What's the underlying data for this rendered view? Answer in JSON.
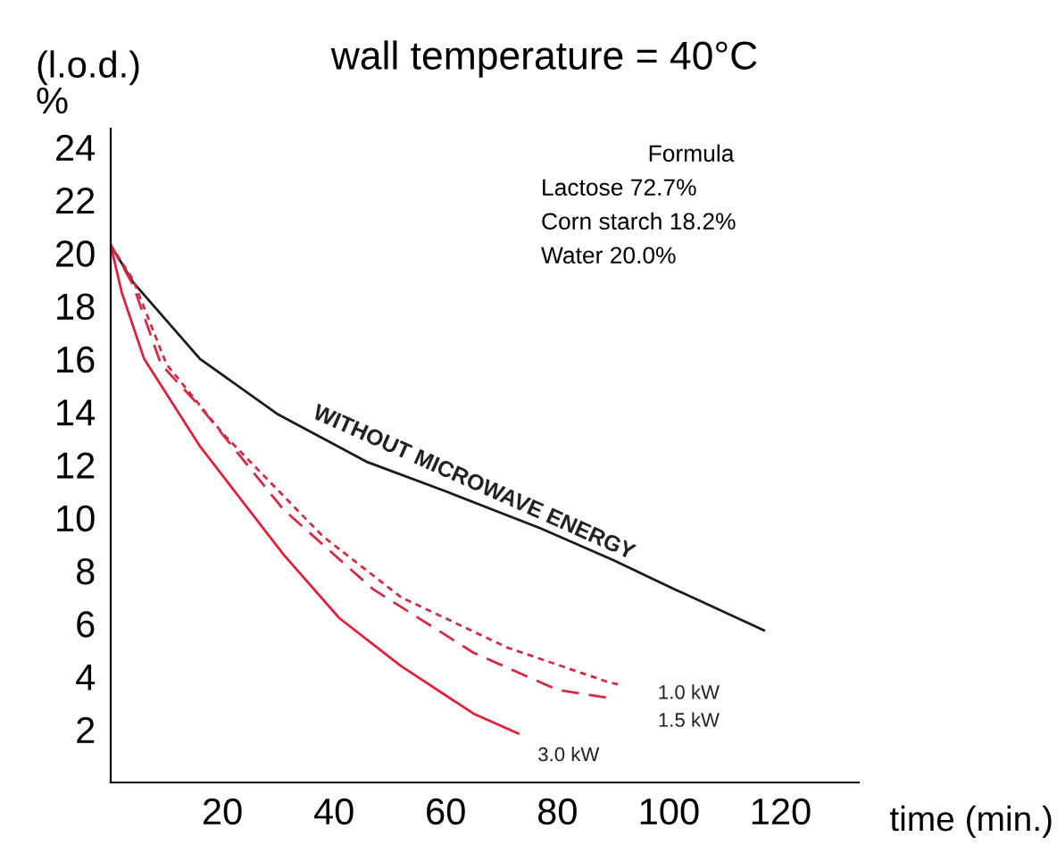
{
  "chart_data": {
    "type": "line",
    "title": "wall temperature = 40°C",
    "ylabel": "(l.o.d.)\n%",
    "xlabel": "time (min.)",
    "xlim": [
      0,
      134
    ],
    "ylim": [
      0,
      24.7
    ],
    "xticks": [
      20,
      40,
      60,
      80,
      100,
      120
    ],
    "yticks": [
      2,
      4,
      6,
      8,
      10,
      12,
      14,
      16,
      18,
      20,
      22,
      24
    ],
    "grid": false,
    "legend": false,
    "marker": "none",
    "series": [
      {
        "name": "WITHOUT MICROWAVE ENERGY",
        "color": "#1a1a1a",
        "line_style": "solid",
        "x": [
          0,
          4,
          16,
          30,
          46,
          60,
          77,
          90,
          101,
          117
        ],
        "values": [
          20.3,
          18.9,
          16.0,
          13.9,
          12.1,
          11.0,
          9.6,
          8.4,
          7.3,
          5.75
        ]
      },
      {
        "name": "1.0 kW",
        "color": "#d42a45",
        "line_style": "dotted",
        "x": [
          0,
          4,
          10,
          20,
          38,
          52,
          71,
          89,
          91
        ],
        "values": [
          20.3,
          19.0,
          15.8,
          13.2,
          9.3,
          7.0,
          5.1,
          3.8,
          3.7
        ]
      },
      {
        "name": "1.5 kW",
        "color": "#d42a45",
        "line_style": "dashed",
        "x": [
          0,
          4,
          9,
          16,
          31,
          47,
          65,
          80,
          89
        ],
        "values": [
          20.3,
          18.8,
          15.8,
          14.2,
          10.3,
          7.3,
          4.9,
          3.5,
          3.2
        ]
      },
      {
        "name": "3.0 kW",
        "color": "#e0203a",
        "line_style": "solid",
        "x": [
          0,
          2,
          6,
          16,
          31,
          41,
          52,
          65,
          73
        ],
        "values": [
          20.3,
          18.5,
          16.0,
          12.7,
          8.6,
          6.2,
          4.4,
          2.6,
          1.85
        ]
      }
    ],
    "annotations": [
      "Formula",
      "Lactose 72.7%",
      "Corn starch 18.2%",
      "Water 20.0%"
    ]
  }
}
